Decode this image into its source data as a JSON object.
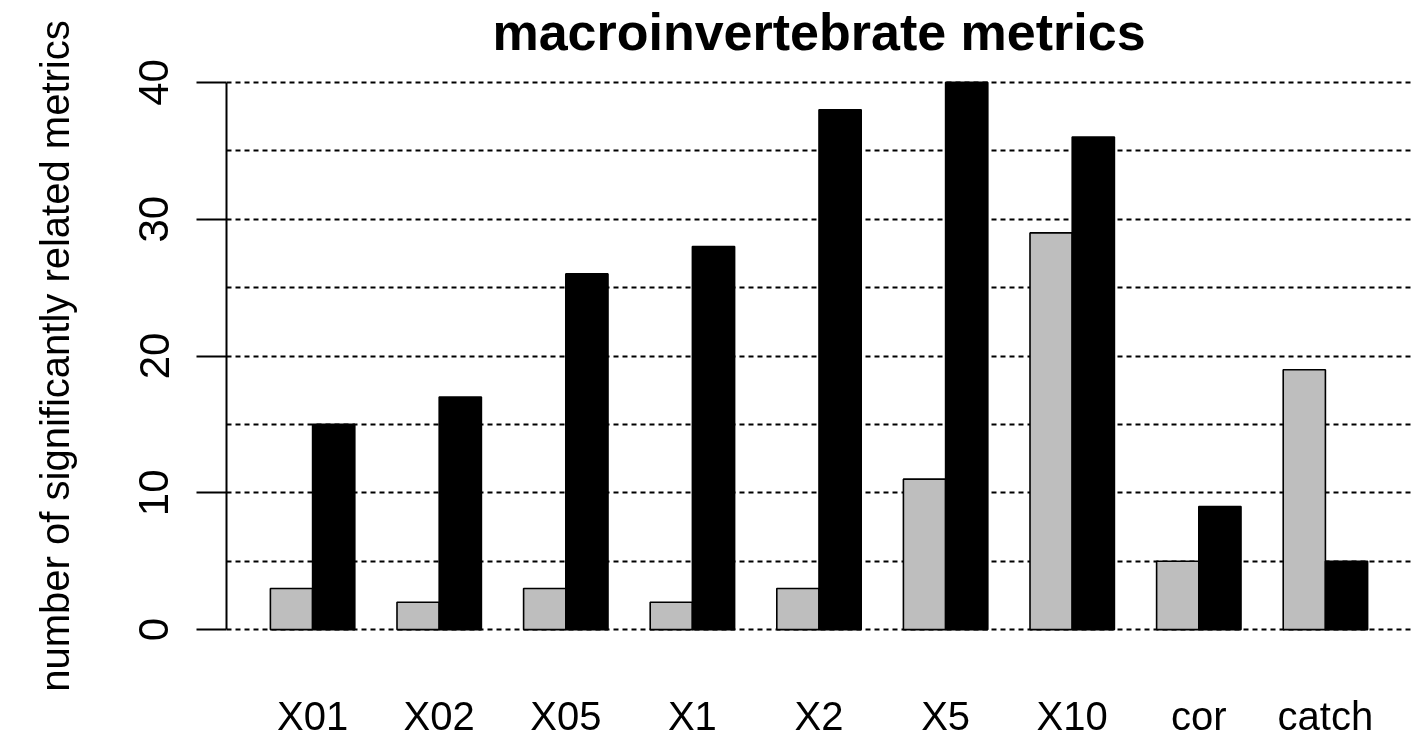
{
  "chart_data": {
    "type": "bar",
    "title": "macroinvertebrate metrics",
    "ylabel": "number of significantly related metrics",
    "categories": [
      "X01",
      "X02",
      "X05",
      "X1",
      "X2",
      "X5",
      "X10",
      "cor",
      "catch"
    ],
    "series": [
      {
        "color": "#bebebe",
        "values": [
          3,
          2,
          3,
          2,
          3,
          11,
          29,
          5,
          19
        ]
      },
      {
        "color": "#000000",
        "values": [
          15,
          17,
          26,
          28,
          38,
          40,
          36,
          9,
          5
        ]
      }
    ],
    "ylim": [
      0,
      40
    ],
    "yticks": [
      0,
      {
        "value": 5,
        "label": null
      },
      10,
      {
        "value": 15,
        "label": null
      },
      20,
      {
        "value": 25,
        "label": null
      },
      30,
      {
        "value": 35,
        "label": null
      },
      40
    ],
    "grid": "y"
  }
}
